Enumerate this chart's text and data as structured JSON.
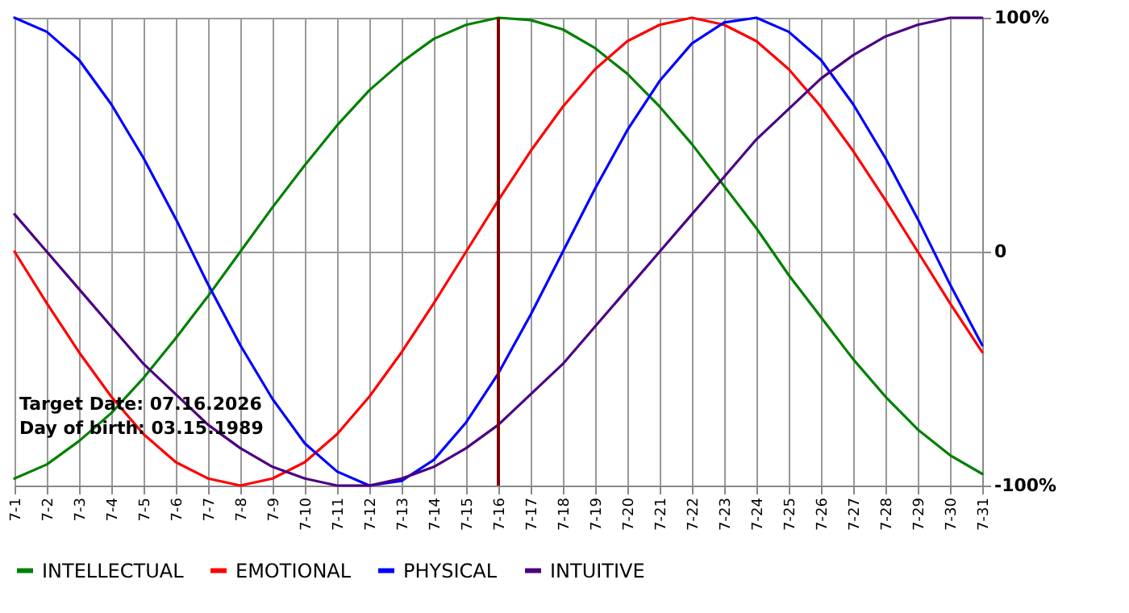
{
  "chart_data": {
    "type": "line",
    "categories": [
      "7-1",
      "7-2",
      "7-3",
      "7-4",
      "7-5",
      "7-6",
      "7-7",
      "7-8",
      "7-9",
      "7-10",
      "7-11",
      "7-12",
      "7-13",
      "7-14",
      "7-15",
      "7-16",
      "7-17",
      "7-18",
      "7-19",
      "7-20",
      "7-21",
      "7-22",
      "7-23",
      "7-24",
      "7-25",
      "7-26",
      "7-27",
      "7-28",
      "7-29",
      "7-30",
      "7-31"
    ],
    "series": [
      {
        "name": "INTELLECTUAL",
        "color": "#008000",
        "values": [
          -97,
          -91,
          -81,
          -69,
          -54,
          -37,
          -19,
          0,
          19,
          37,
          54,
          69,
          81,
          91,
          97,
          100,
          99,
          95,
          87,
          76,
          62,
          46,
          28,
          10,
          -10,
          -28,
          -46,
          -62,
          -76,
          -87,
          -95
        ]
      },
      {
        "name": "EMOTIONAL",
        "color": "#ff0000",
        "values": [
          0,
          -22,
          -43,
          -62,
          -78,
          -90,
          -97,
          -100,
          -97,
          -90,
          -78,
          -62,
          -43,
          -22,
          0,
          22,
          43,
          62,
          78,
          90,
          97,
          100,
          97,
          90,
          78,
          62,
          43,
          22,
          0,
          -22,
          -43
        ]
      },
      {
        "name": "PHYSICAL",
        "color": "#0000ff",
        "values": [
          100,
          94,
          82,
          63,
          40,
          14,
          -14,
          -40,
          -63,
          -82,
          -94,
          -100,
          -98,
          -89,
          -73,
          -52,
          -27,
          0,
          27,
          52,
          73,
          89,
          98,
          100,
          94,
          82,
          63,
          40,
          14,
          -14,
          -40
        ]
      },
      {
        "name": "INTUITIVE",
        "color": "#4b0082",
        "values": [
          16,
          0,
          -16,
          -32,
          -48,
          -61,
          -74,
          -84,
          -92,
          -97,
          -100,
          -100,
          -97,
          -92,
          -84,
          -74,
          -61,
          -48,
          -32,
          -16,
          0,
          16,
          32,
          48,
          61,
          74,
          84,
          92,
          97,
          100,
          100
        ]
      }
    ],
    "ylim": [
      -100,
      100
    ],
    "yticks": [
      {
        "value": 100,
        "label": "100%"
      },
      0,
      {
        "value": -100,
        "label": "-100%"
      }
    ],
    "grid": true,
    "legend": "bottom",
    "ref_lines": [
      {
        "axis": "x",
        "value": "7-16",
        "color": "#800000"
      }
    ],
    "annotations": [
      "Target Date: 07.16.2026",
      "Day of birth: 03.15.1989"
    ]
  }
}
